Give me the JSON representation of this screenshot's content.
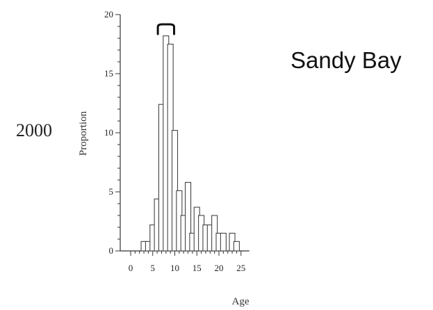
{
  "chart_data": {
    "type": "bar",
    "title": "Sandy Bay",
    "side_label": "2000",
    "xlabel": "Age",
    "ylabel": "Proportion",
    "xlim": [
      0,
      25
    ],
    "ylim": [
      0,
      20
    ],
    "xticks": [
      0,
      5,
      10,
      15,
      20,
      25
    ],
    "yticks": [
      0,
      5,
      10,
      15,
      20
    ],
    "grid": false,
    "bracket_range": [
      6,
      10
    ],
    "x": [
      3,
      4,
      5,
      6,
      7,
      8,
      9,
      10,
      11,
      12,
      13,
      14,
      15,
      16,
      17,
      18,
      19,
      20,
      21,
      23,
      24
    ],
    "values": [
      0.8,
      0.8,
      2.2,
      4.4,
      12.4,
      18.2,
      17.5,
      10.2,
      5.1,
      3.0,
      5.8,
      1.5,
      3.7,
      3.0,
      2.2,
      2.2,
      3.0,
      1.5,
      1.5,
      1.5,
      0.8
    ],
    "colors": {
      "bar_fill": "#ffffff",
      "bar_stroke": "#444444",
      "axis": "#333333",
      "text": "#222222"
    }
  }
}
